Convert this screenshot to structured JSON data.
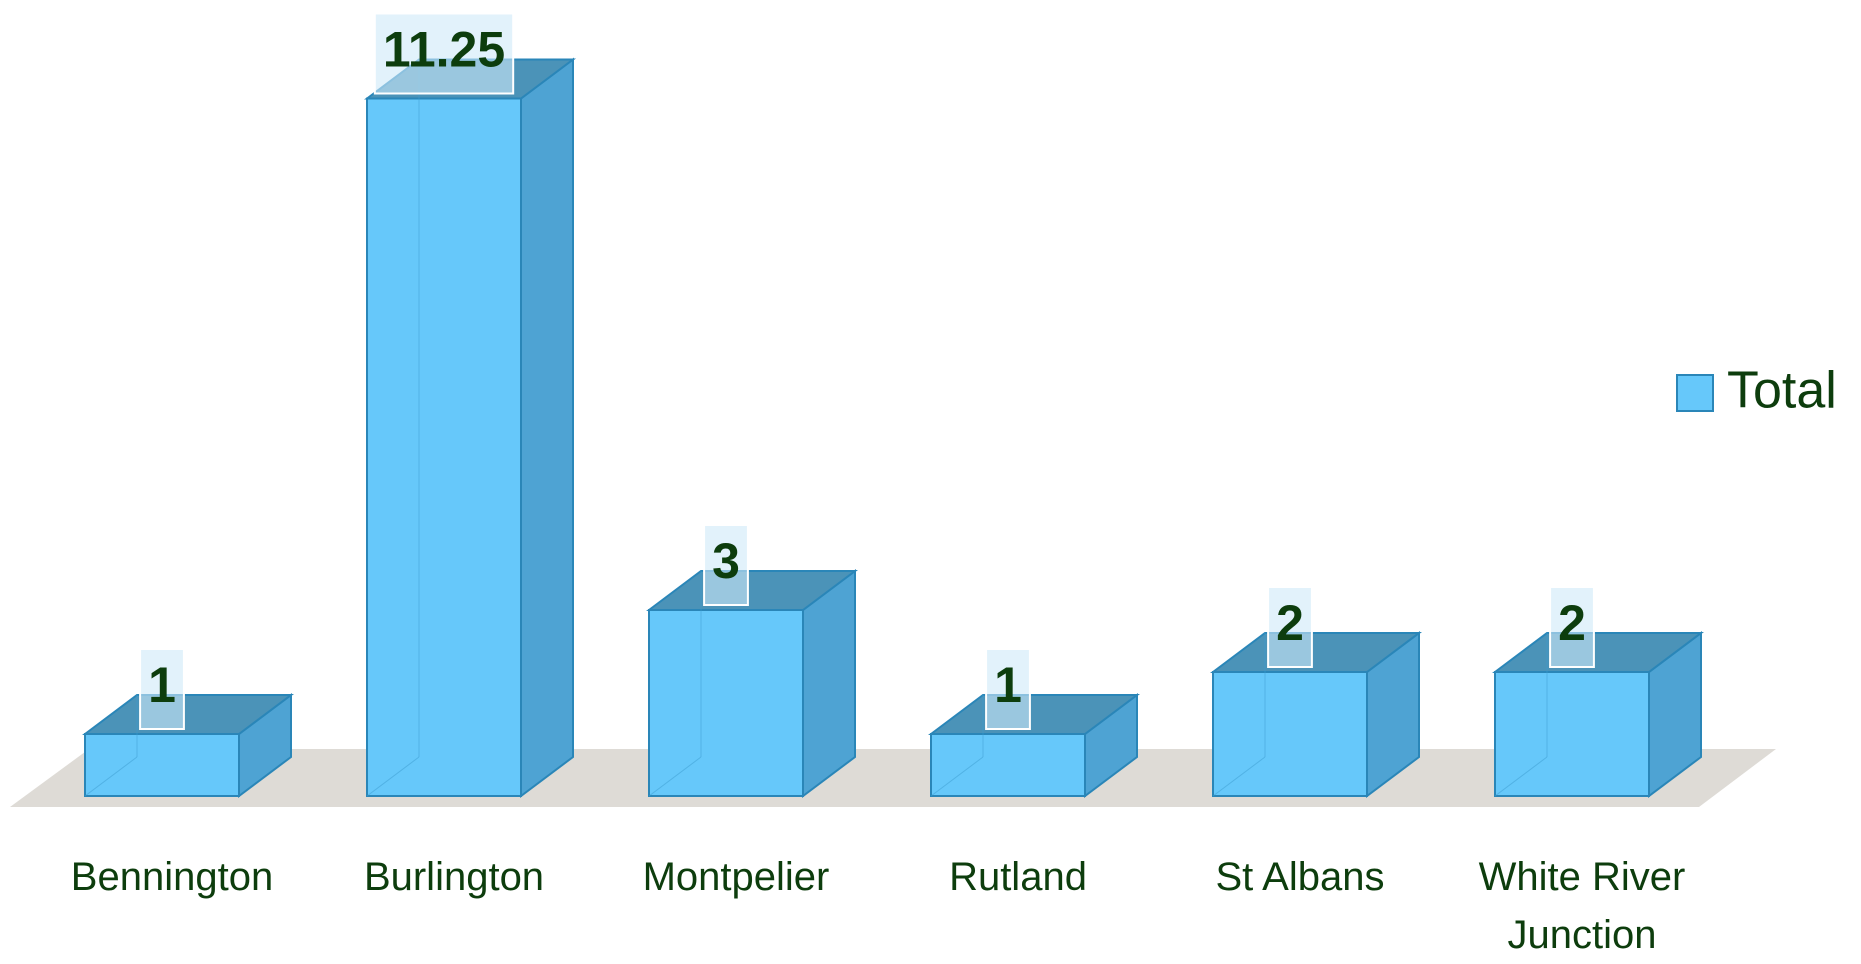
{
  "chart_data": {
    "type": "bar3d",
    "categories": [
      "Bennington",
      "Burlington",
      "Montpelier",
      "Rutland",
      "St Albans",
      "White River Junction"
    ],
    "series": [
      {
        "name": "Total",
        "color": "#66c8fa",
        "values": [
          1,
          11.25,
          3,
          1,
          2,
          2
        ]
      }
    ],
    "legend": "right"
  }
}
